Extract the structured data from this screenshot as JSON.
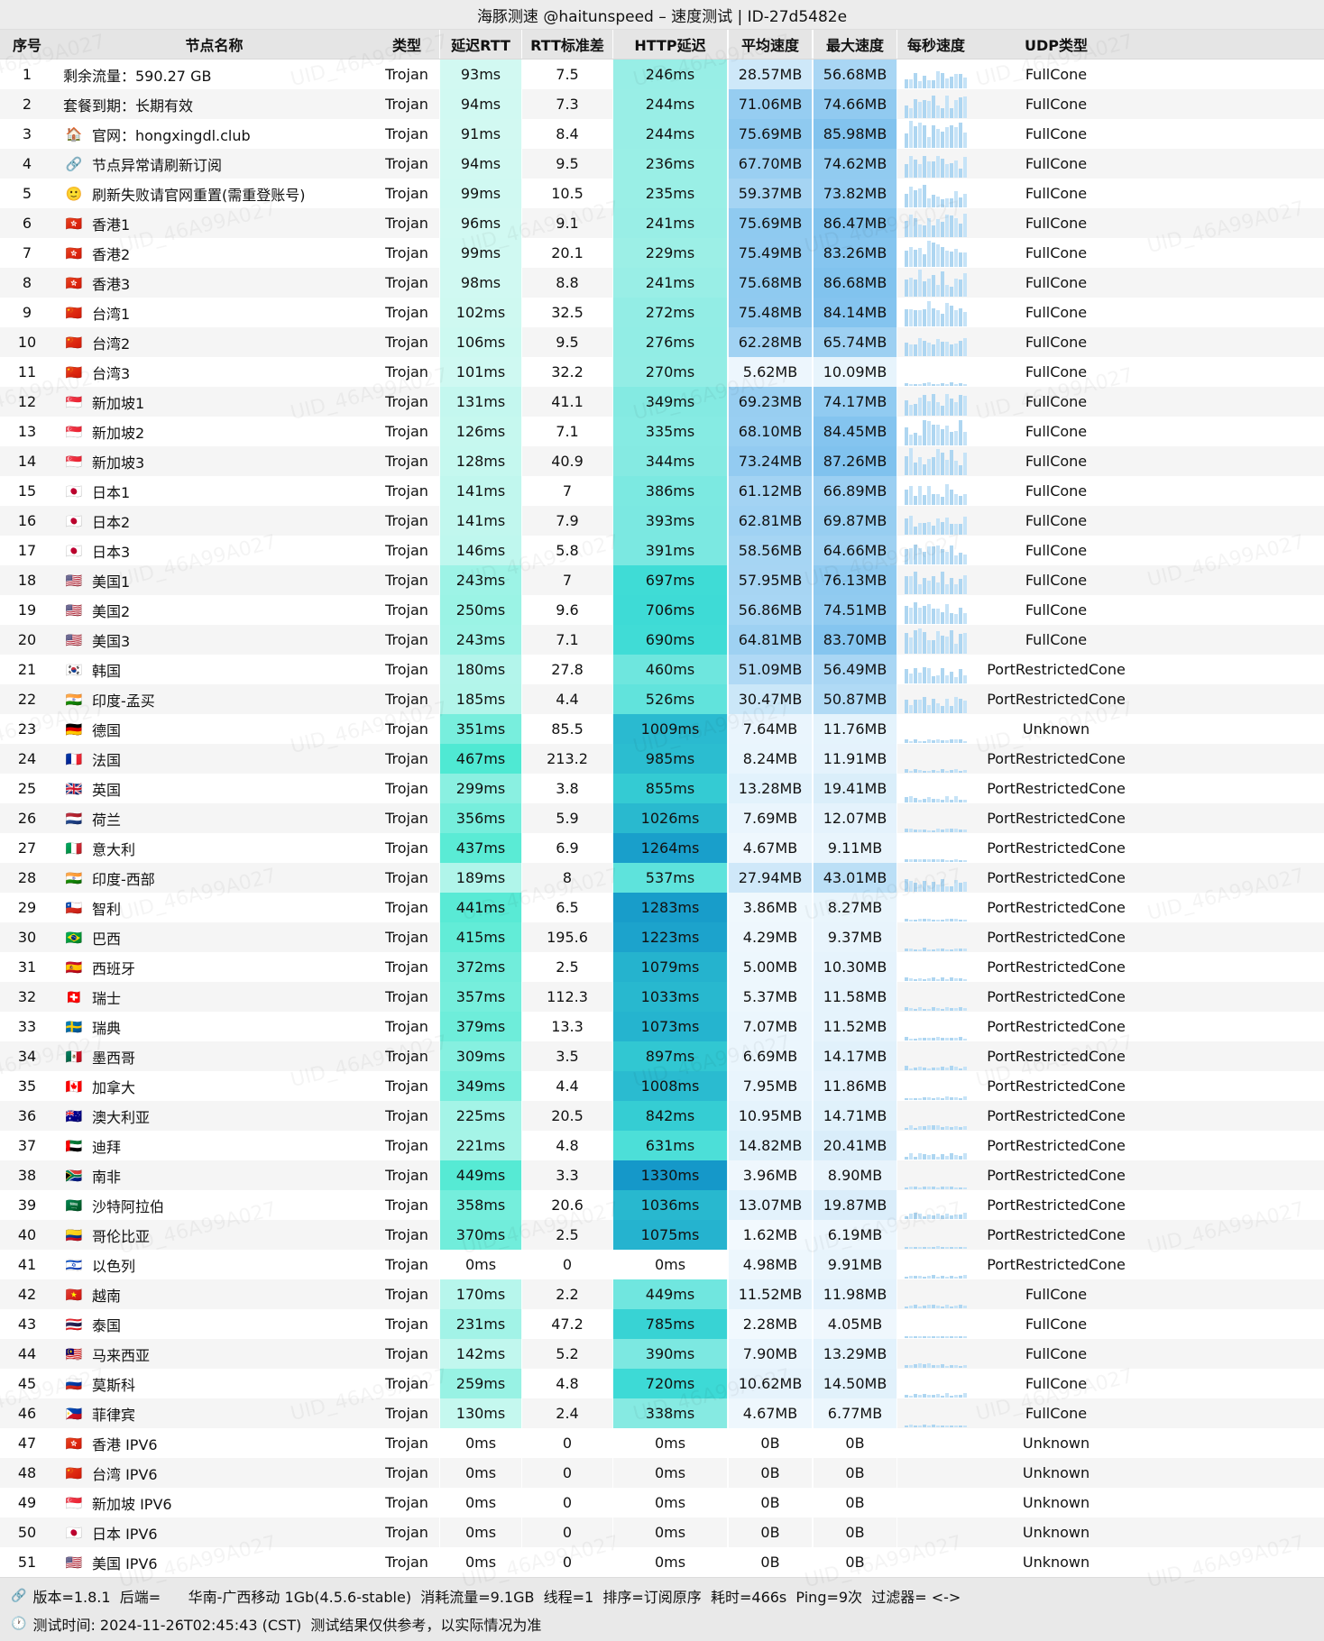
{
  "title": "海豚测速 @haitunspeed – 速度测试 | ID-27d5482e",
  "columns": [
    "序号",
    "节点名称",
    "类型",
    "延迟RTT",
    "RTT标准差",
    "HTTP延迟",
    "平均速度",
    "最大速度",
    "每秒速度",
    "UDP类型"
  ],
  "rows": [
    {
      "n": 1,
      "f": "",
      "name": "剩余流量：590.27 GB",
      "type": "Trojan",
      "rtt": 93,
      "std": "7.5",
      "http": 246,
      "avg": "28.57MB",
      "avgv": 28.57,
      "max": "56.68MB",
      "maxv": 56.68,
      "udp": "FullCone"
    },
    {
      "n": 2,
      "f": "",
      "name": "套餐到期：长期有效",
      "type": "Trojan",
      "rtt": 94,
      "std": "7.3",
      "http": 244,
      "avg": "71.06MB",
      "avgv": 71.06,
      "max": "74.66MB",
      "maxv": 74.66,
      "udp": "FullCone"
    },
    {
      "n": 3,
      "f": "🏠",
      "name": "官网：hongxingdl.club",
      "type": "Trojan",
      "rtt": 91,
      "std": "8.4",
      "http": 244,
      "avg": "75.69MB",
      "avgv": 75.69,
      "max": "85.98MB",
      "maxv": 85.98,
      "udp": "FullCone"
    },
    {
      "n": 4,
      "f": "🔗",
      "name": "节点异常请刷新订阅",
      "type": "Trojan",
      "rtt": 94,
      "std": "9.5",
      "http": 236,
      "avg": "67.70MB",
      "avgv": 67.7,
      "max": "74.62MB",
      "maxv": 74.62,
      "udp": "FullCone"
    },
    {
      "n": 5,
      "f": "🙂",
      "name": "刷新失败请官网重置(需重登账号)",
      "type": "Trojan",
      "rtt": 99,
      "std": "10.5",
      "http": 235,
      "avg": "59.37MB",
      "avgv": 59.37,
      "max": "73.82MB",
      "maxv": 73.82,
      "udp": "FullCone"
    },
    {
      "n": 6,
      "f": "🇭🇰",
      "name": "香港1",
      "type": "Trojan",
      "rtt": 96,
      "std": "9.1",
      "http": 241,
      "avg": "75.69MB",
      "avgv": 75.69,
      "max": "86.47MB",
      "maxv": 86.47,
      "udp": "FullCone"
    },
    {
      "n": 7,
      "f": "🇭🇰",
      "name": "香港2",
      "type": "Trojan",
      "rtt": 99,
      "std": "20.1",
      "http": 229,
      "avg": "75.49MB",
      "avgv": 75.49,
      "max": "83.26MB",
      "maxv": 83.26,
      "udp": "FullCone"
    },
    {
      "n": 8,
      "f": "🇭🇰",
      "name": "香港3",
      "type": "Trojan",
      "rtt": 98,
      "std": "8.8",
      "http": 241,
      "avg": "75.68MB",
      "avgv": 75.68,
      "max": "86.68MB",
      "maxv": 86.68,
      "udp": "FullCone"
    },
    {
      "n": 9,
      "f": "🇨🇳",
      "name": "台湾1",
      "type": "Trojan",
      "rtt": 102,
      "std": "32.5",
      "http": 272,
      "avg": "75.48MB",
      "avgv": 75.48,
      "max": "84.14MB",
      "maxv": 84.14,
      "udp": "FullCone"
    },
    {
      "n": 10,
      "f": "🇨🇳",
      "name": "台湾2",
      "type": "Trojan",
      "rtt": 106,
      "std": "9.5",
      "http": 276,
      "avg": "62.28MB",
      "avgv": 62.28,
      "max": "65.74MB",
      "maxv": 65.74,
      "udp": "FullCone"
    },
    {
      "n": 11,
      "f": "🇨🇳",
      "name": "台湾3",
      "type": "Trojan",
      "rtt": 101,
      "std": "32.2",
      "http": 270,
      "avg": "5.62MB",
      "avgv": 5.62,
      "max": "10.09MB",
      "maxv": 10.09,
      "udp": "FullCone"
    },
    {
      "n": 12,
      "f": "🇸🇬",
      "name": "新加坡1",
      "type": "Trojan",
      "rtt": 131,
      "std": "41.1",
      "http": 349,
      "avg": "69.23MB",
      "avgv": 69.23,
      "max": "74.17MB",
      "maxv": 74.17,
      "udp": "FullCone"
    },
    {
      "n": 13,
      "f": "🇸🇬",
      "name": "新加坡2",
      "type": "Trojan",
      "rtt": 126,
      "std": "7.1",
      "http": 335,
      "avg": "68.10MB",
      "avgv": 68.1,
      "max": "84.45MB",
      "maxv": 84.45,
      "udp": "FullCone"
    },
    {
      "n": 14,
      "f": "🇸🇬",
      "name": "新加坡3",
      "type": "Trojan",
      "rtt": 128,
      "std": "40.9",
      "http": 344,
      "avg": "73.24MB",
      "avgv": 73.24,
      "max": "87.26MB",
      "maxv": 87.26,
      "udp": "FullCone"
    },
    {
      "n": 15,
      "f": "🇯🇵",
      "name": "日本1",
      "type": "Trojan",
      "rtt": 141,
      "std": "7",
      "http": 386,
      "avg": "61.12MB",
      "avgv": 61.12,
      "max": "66.89MB",
      "maxv": 66.89,
      "udp": "FullCone"
    },
    {
      "n": 16,
      "f": "🇯🇵",
      "name": "日本2",
      "type": "Trojan",
      "rtt": 141,
      "std": "7.9",
      "http": 393,
      "avg": "62.81MB",
      "avgv": 62.81,
      "max": "69.87MB",
      "maxv": 69.87,
      "udp": "FullCone"
    },
    {
      "n": 17,
      "f": "🇯🇵",
      "name": "日本3",
      "type": "Trojan",
      "rtt": 146,
      "std": "5.8",
      "http": 391,
      "avg": "58.56MB",
      "avgv": 58.56,
      "max": "64.66MB",
      "maxv": 64.66,
      "udp": "FullCone"
    },
    {
      "n": 18,
      "f": "🇺🇸",
      "name": "美国1",
      "type": "Trojan",
      "rtt": 243,
      "std": "7",
      "http": 697,
      "avg": "57.95MB",
      "avgv": 57.95,
      "max": "76.13MB",
      "maxv": 76.13,
      "udp": "FullCone"
    },
    {
      "n": 19,
      "f": "🇺🇸",
      "name": "美国2",
      "type": "Trojan",
      "rtt": 250,
      "std": "9.6",
      "http": 706,
      "avg": "56.86MB",
      "avgv": 56.86,
      "max": "74.51MB",
      "maxv": 74.51,
      "udp": "FullCone"
    },
    {
      "n": 20,
      "f": "🇺🇸",
      "name": "美国3",
      "type": "Trojan",
      "rtt": 243,
      "std": "7.1",
      "http": 690,
      "avg": "64.81MB",
      "avgv": 64.81,
      "max": "83.70MB",
      "maxv": 83.7,
      "udp": "FullCone"
    },
    {
      "n": 21,
      "f": "🇰🇷",
      "name": "韩国",
      "type": "Trojan",
      "rtt": 180,
      "std": "27.8",
      "http": 460,
      "avg": "51.09MB",
      "avgv": 51.09,
      "max": "56.49MB",
      "maxv": 56.49,
      "udp": "PortRestrictedCone"
    },
    {
      "n": 22,
      "f": "🇮🇳",
      "name": "印度-孟买",
      "type": "Trojan",
      "rtt": 185,
      "std": "4.4",
      "http": 526,
      "avg": "30.47MB",
      "avgv": 30.47,
      "max": "50.87MB",
      "maxv": 50.87,
      "udp": "PortRestrictedCone"
    },
    {
      "n": 23,
      "f": "🇩🇪",
      "name": "德国",
      "type": "Trojan",
      "rtt": 351,
      "std": "85.5",
      "http": 1009,
      "avg": "7.64MB",
      "avgv": 7.64,
      "max": "11.76MB",
      "maxv": 11.76,
      "udp": "Unknown"
    },
    {
      "n": 24,
      "f": "🇫🇷",
      "name": "法国",
      "type": "Trojan",
      "rtt": 467,
      "std": "213.2",
      "http": 985,
      "avg": "8.24MB",
      "avgv": 8.24,
      "max": "11.91MB",
      "maxv": 11.91,
      "udp": "PortRestrictedCone"
    },
    {
      "n": 25,
      "f": "🇬🇧",
      "name": "英国",
      "type": "Trojan",
      "rtt": 299,
      "std": "3.8",
      "http": 855,
      "avg": "13.28MB",
      "avgv": 13.28,
      "max": "19.41MB",
      "maxv": 19.41,
      "udp": "PortRestrictedCone"
    },
    {
      "n": 26,
      "f": "🇳🇱",
      "name": "荷兰",
      "type": "Trojan",
      "rtt": 356,
      "std": "5.9",
      "http": 1026,
      "avg": "7.69MB",
      "avgv": 7.69,
      "max": "12.07MB",
      "maxv": 12.07,
      "udp": "PortRestrictedCone"
    },
    {
      "n": 27,
      "f": "🇮🇹",
      "name": "意大利",
      "type": "Trojan",
      "rtt": 437,
      "std": "6.9",
      "http": 1264,
      "avg": "4.67MB",
      "avgv": 4.67,
      "max": "9.11MB",
      "maxv": 9.11,
      "udp": "PortRestrictedCone"
    },
    {
      "n": 28,
      "f": "🇮🇳",
      "name": "印度-西部",
      "type": "Trojan",
      "rtt": 189,
      "std": "8",
      "http": 537,
      "avg": "27.94MB",
      "avgv": 27.94,
      "max": "43.01MB",
      "maxv": 43.01,
      "udp": "PortRestrictedCone"
    },
    {
      "n": 29,
      "f": "🇨🇱",
      "name": "智利",
      "type": "Trojan",
      "rtt": 441,
      "std": "6.5",
      "http": 1283,
      "avg": "3.86MB",
      "avgv": 3.86,
      "max": "8.27MB",
      "maxv": 8.27,
      "udp": "PortRestrictedCone"
    },
    {
      "n": 30,
      "f": "🇧🇷",
      "name": "巴西",
      "type": "Trojan",
      "rtt": 415,
      "std": "195.6",
      "http": 1223,
      "avg": "4.29MB",
      "avgv": 4.29,
      "max": "9.37MB",
      "maxv": 9.37,
      "udp": "PortRestrictedCone"
    },
    {
      "n": 31,
      "f": "🇪🇸",
      "name": "西班牙",
      "type": "Trojan",
      "rtt": 372,
      "std": "2.5",
      "http": 1079,
      "avg": "5.00MB",
      "avgv": 5.0,
      "max": "10.30MB",
      "maxv": 10.3,
      "udp": "PortRestrictedCone"
    },
    {
      "n": 32,
      "f": "🇨🇭",
      "name": "瑞士",
      "type": "Trojan",
      "rtt": 357,
      "std": "112.3",
      "http": 1033,
      "avg": "5.37MB",
      "avgv": 5.37,
      "max": "11.58MB",
      "maxv": 11.58,
      "udp": "PortRestrictedCone"
    },
    {
      "n": 33,
      "f": "🇸🇪",
      "name": "瑞典",
      "type": "Trojan",
      "rtt": 379,
      "std": "13.3",
      "http": 1073,
      "avg": "7.07MB",
      "avgv": 7.07,
      "max": "11.52MB",
      "maxv": 11.52,
      "udp": "PortRestrictedCone"
    },
    {
      "n": 34,
      "f": "🇲🇽",
      "name": "墨西哥",
      "type": "Trojan",
      "rtt": 309,
      "std": "3.5",
      "http": 897,
      "avg": "6.69MB",
      "avgv": 6.69,
      "max": "14.17MB",
      "maxv": 14.17,
      "udp": "PortRestrictedCone"
    },
    {
      "n": 35,
      "f": "🇨🇦",
      "name": "加拿大",
      "type": "Trojan",
      "rtt": 349,
      "std": "4.4",
      "http": 1008,
      "avg": "7.95MB",
      "avgv": 7.95,
      "max": "11.86MB",
      "maxv": 11.86,
      "udp": "PortRestrictedCone"
    },
    {
      "n": 36,
      "f": "🇦🇺",
      "name": "澳大利亚",
      "type": "Trojan",
      "rtt": 225,
      "std": "20.5",
      "http": 842,
      "avg": "10.95MB",
      "avgv": 10.95,
      "max": "14.71MB",
      "maxv": 14.71,
      "udp": "PortRestrictedCone"
    },
    {
      "n": 37,
      "f": "🇦🇪",
      "name": "迪拜",
      "type": "Trojan",
      "rtt": 221,
      "std": "4.8",
      "http": 631,
      "avg": "14.82MB",
      "avgv": 14.82,
      "max": "20.41MB",
      "maxv": 20.41,
      "udp": "PortRestrictedCone"
    },
    {
      "n": 38,
      "f": "🇿🇦",
      "name": "南非",
      "type": "Trojan",
      "rtt": 449,
      "std": "3.3",
      "http": 1330,
      "avg": "3.96MB",
      "avgv": 3.96,
      "max": "8.90MB",
      "maxv": 8.9,
      "udp": "PortRestrictedCone"
    },
    {
      "n": 39,
      "f": "🇸🇦",
      "name": "沙特阿拉伯",
      "type": "Trojan",
      "rtt": 358,
      "std": "20.6",
      "http": 1036,
      "avg": "13.07MB",
      "avgv": 13.07,
      "max": "19.87MB",
      "maxv": 19.87,
      "udp": "PortRestrictedCone"
    },
    {
      "n": 40,
      "f": "🇨🇴",
      "name": "哥伦比亚",
      "type": "Trojan",
      "rtt": 370,
      "std": "2.5",
      "http": 1075,
      "avg": "1.62MB",
      "avgv": 1.62,
      "max": "6.19MB",
      "maxv": 6.19,
      "udp": "PortRestrictedCone"
    },
    {
      "n": 41,
      "f": "🇮🇱",
      "name": "以色列",
      "type": "Trojan",
      "rtt": 0,
      "std": "0",
      "http": 0,
      "avg": "4.98MB",
      "avgv": 4.98,
      "max": "9.91MB",
      "maxv": 9.91,
      "udp": "PortRestrictedCone"
    },
    {
      "n": 42,
      "f": "🇻🇳",
      "name": "越南",
      "type": "Trojan",
      "rtt": 170,
      "std": "2.2",
      "http": 449,
      "avg": "11.52MB",
      "avgv": 11.52,
      "max": "11.98MB",
      "maxv": 11.98,
      "udp": "FullCone"
    },
    {
      "n": 43,
      "f": "🇹🇭",
      "name": "泰国",
      "type": "Trojan",
      "rtt": 231,
      "std": "47.2",
      "http": 785,
      "avg": "2.28MB",
      "avgv": 2.28,
      "max": "4.05MB",
      "maxv": 4.05,
      "udp": "FullCone"
    },
    {
      "n": 44,
      "f": "🇲🇾",
      "name": "马来西亚",
      "type": "Trojan",
      "rtt": 142,
      "std": "5.2",
      "http": 390,
      "avg": "7.90MB",
      "avgv": 7.9,
      "max": "13.29MB",
      "maxv": 13.29,
      "udp": "FullCone"
    },
    {
      "n": 45,
      "f": "🇷🇺",
      "name": "莫斯科",
      "type": "Trojan",
      "rtt": 259,
      "std": "4.8",
      "http": 720,
      "avg": "10.62MB",
      "avgv": 10.62,
      "max": "14.50MB",
      "maxv": 14.5,
      "udp": "FullCone"
    },
    {
      "n": 46,
      "f": "🇵🇭",
      "name": "菲律宾",
      "type": "Trojan",
      "rtt": 130,
      "std": "2.4",
      "http": 338,
      "avg": "4.67MB",
      "avgv": 4.67,
      "max": "6.77MB",
      "maxv": 6.77,
      "udp": "FullCone"
    },
    {
      "n": 47,
      "f": "🇭🇰",
      "name": "香港 IPV6",
      "type": "Trojan",
      "rtt": 0,
      "std": "0",
      "http": 0,
      "avg": "0B",
      "avgv": 0,
      "max": "0B",
      "maxv": 0,
      "udp": "Unknown"
    },
    {
      "n": 48,
      "f": "🇨🇳",
      "name": "台湾 IPV6",
      "type": "Trojan",
      "rtt": 0,
      "std": "0",
      "http": 0,
      "avg": "0B",
      "avgv": 0,
      "max": "0B",
      "maxv": 0,
      "udp": "Unknown"
    },
    {
      "n": 49,
      "f": "🇸🇬",
      "name": "新加坡 IPV6",
      "type": "Trojan",
      "rtt": 0,
      "std": "0",
      "http": 0,
      "avg": "0B",
      "avgv": 0,
      "max": "0B",
      "maxv": 0,
      "udp": "Unknown"
    },
    {
      "n": 50,
      "f": "🇯🇵",
      "name": "日本 IPV6",
      "type": "Trojan",
      "rtt": 0,
      "std": "0",
      "http": 0,
      "avg": "0B",
      "avgv": 0,
      "max": "0B",
      "maxv": 0,
      "udp": "Unknown"
    },
    {
      "n": 51,
      "f": "🇺🇸",
      "name": "美国 IPV6",
      "type": "Trojan",
      "rtt": 0,
      "std": "0",
      "http": 0,
      "avg": "0B",
      "avgv": 0,
      "max": "0B",
      "maxv": 0,
      "udp": "Unknown"
    }
  ],
  "footer": {
    "info_icon": "🔗",
    "info": "版本=1.8.1  后端=      华南-广西移动 1Gb(4.5.6-stable)  消耗流量=9.1GB  线程=1  排序=订阅原序  耗时=466s  Ping=9次  过滤器= <->",
    "time_icon": "🕐",
    "time": "测试时间: 2024-11-26T02:45:43 (CST)  测试结果仅供参考，以实际情况为准"
  },
  "watermark": "UID_46A99A027",
  "colors": {
    "rtt_scale": [
      "#f2fdfa",
      "#44e8d0"
    ],
    "http_scale": [
      "#c9f8ee",
      "#3edcd6",
      "#1090c8"
    ],
    "speed_scale": [
      "#f4fafe",
      "#7fc2ee"
    ],
    "spark_bar": "#aed6f1",
    "spark_bar_alt": "#c6e3f7",
    "titlebar_bg": "#ececec",
    "header_bg": "#e5e5e5",
    "stripe_bg": "#f5f5f5",
    "footer_bg": "#e9e9e9"
  }
}
